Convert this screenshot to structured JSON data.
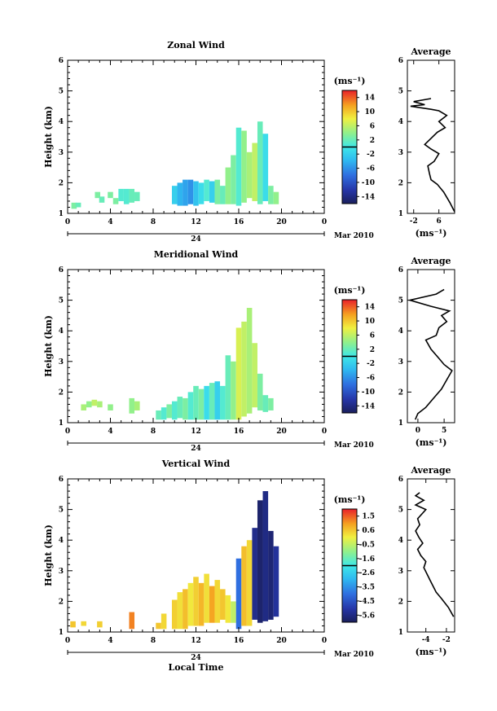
{
  "chart_data": [
    {
      "type": "heatmap",
      "title": "Zonal Wind",
      "xlabel": "",
      "ylabel": "Height (km)",
      "x_ticks": [
        "0",
        "4",
        "8",
        "12",
        "16",
        "20",
        "0"
      ],
      "xlim": [
        0,
        24
      ],
      "y_ticks": [
        "1",
        "2",
        "3",
        "4",
        "5",
        "6"
      ],
      "ylim": [
        1,
        6
      ],
      "day_label": "24",
      "month_label": "Mar 2010",
      "colorbar": {
        "unit": "(ms⁻¹)",
        "ticks": [
          "14",
          "10",
          "6",
          "2",
          "-2",
          "-6",
          "-10",
          "-14"
        ],
        "range": [
          -16,
          16
        ]
      },
      "cells": [
        {
          "t": 0.6,
          "h1": 1.15,
          "h2": 1.35,
          "v": 3
        },
        {
          "t": 1.0,
          "h1": 1.2,
          "h2": 1.35,
          "v": 2
        },
        {
          "t": 2.8,
          "h1": 1.5,
          "h2": 1.7,
          "v": 3
        },
        {
          "t": 3.2,
          "h1": 1.35,
          "h2": 1.55,
          "v": 2
        },
        {
          "t": 4.0,
          "h1": 1.5,
          "h2": 1.7,
          "v": 3
        },
        {
          "t": 4.5,
          "h1": 1.3,
          "h2": 1.5,
          "v": 3
        },
        {
          "t": 5.0,
          "h1": 1.4,
          "h2": 1.8,
          "v": 1
        },
        {
          "t": 5.5,
          "h1": 1.3,
          "h2": 1.8,
          "v": 1
        },
        {
          "t": 6.0,
          "h1": 1.35,
          "h2": 1.8,
          "v": 2
        },
        {
          "t": 6.5,
          "h1": 1.4,
          "h2": 1.7,
          "v": 2
        },
        {
          "t": 10.0,
          "h1": 1.3,
          "h2": 1.9,
          "v": -2
        },
        {
          "t": 10.5,
          "h1": 1.25,
          "h2": 2.0,
          "v": -4
        },
        {
          "t": 11.0,
          "h1": 1.25,
          "h2": 2.1,
          "v": -5
        },
        {
          "t": 11.5,
          "h1": 1.3,
          "h2": 2.1,
          "v": -6
        },
        {
          "t": 12.0,
          "h1": 1.25,
          "h2": 2.05,
          "v": -3
        },
        {
          "t": 12.5,
          "h1": 1.3,
          "h2": 2.0,
          "v": -1
        },
        {
          "t": 13.0,
          "h1": 1.4,
          "h2": 2.1,
          "v": 1
        },
        {
          "t": 13.5,
          "h1": 1.35,
          "h2": 2.05,
          "v": -2
        },
        {
          "t": 14.0,
          "h1": 1.3,
          "h2": 2.1,
          "v": 3
        },
        {
          "t": 14.5,
          "h1": 1.3,
          "h2": 1.9,
          "v": 2
        },
        {
          "t": 15.0,
          "h1": 1.3,
          "h2": 2.5,
          "v": 4
        },
        {
          "t": 15.5,
          "h1": 1.3,
          "h2": 2.9,
          "v": 3
        },
        {
          "t": 16.0,
          "h1": 1.25,
          "h2": 3.8,
          "v": 1
        },
        {
          "t": 16.5,
          "h1": 1.35,
          "h2": 3.7,
          "v": 4
        },
        {
          "t": 17.0,
          "h1": 1.5,
          "h2": 3.0,
          "v": 5
        },
        {
          "t": 17.5,
          "h1": 1.4,
          "h2": 3.3,
          "v": 6
        },
        {
          "t": 18.0,
          "h1": 1.3,
          "h2": 4.0,
          "v": 2
        },
        {
          "t": 18.5,
          "h1": 1.4,
          "h2": 3.6,
          "v": -1
        },
        {
          "t": 19.0,
          "h1": 1.3,
          "h2": 1.9,
          "v": 3
        },
        {
          "t": 19.5,
          "h1": 1.3,
          "h2": 1.7,
          "v": 4
        }
      ],
      "profile": {
        "title": "Average",
        "xlabel": "(ms⁻¹)",
        "x_ticks": [
          "-2",
          "6"
        ],
        "tick_values": [
          -2,
          6
        ],
        "xlim": [
          -4,
          11
        ],
        "ylim": [
          1,
          6
        ],
        "y_ticks": [
          "1",
          "2",
          "3",
          "4",
          "5",
          "6"
        ],
        "points": [
          [
            11,
            1.05
          ],
          [
            9.5,
            1.35
          ],
          [
            7.5,
            1.7
          ],
          [
            5.5,
            1.95
          ],
          [
            3.5,
            2.1
          ],
          [
            3.0,
            2.3
          ],
          [
            2.5,
            2.55
          ],
          [
            4.5,
            2.7
          ],
          [
            6.0,
            2.95
          ],
          [
            3.5,
            3.1
          ],
          [
            1.5,
            3.25
          ],
          [
            3.5,
            3.45
          ],
          [
            5.5,
            3.65
          ],
          [
            8.0,
            3.8
          ],
          [
            6.0,
            4.0
          ],
          [
            8.5,
            4.2
          ],
          [
            6.0,
            4.35
          ],
          [
            3.5,
            4.4
          ],
          [
            -3.0,
            4.5
          ],
          [
            1.5,
            4.55
          ],
          [
            -2.0,
            4.65
          ],
          [
            3.5,
            4.75
          ]
        ]
      }
    },
    {
      "type": "heatmap",
      "title": "Meridional Wind",
      "xlabel": "",
      "ylabel": "Height (km)",
      "x_ticks": [
        "0",
        "4",
        "8",
        "12",
        "16",
        "20",
        "0"
      ],
      "xlim": [
        0,
        24
      ],
      "y_ticks": [
        "1",
        "2",
        "3",
        "4",
        "5",
        "6"
      ],
      "ylim": [
        1,
        6
      ],
      "day_label": "24",
      "month_label": "Mar 2010",
      "colorbar": {
        "unit": "(ms⁻¹)",
        "ticks": [
          "14",
          "10",
          "6",
          "2",
          "-2",
          "-6",
          "-10",
          "-14"
        ],
        "range": [
          -16,
          16
        ]
      },
      "cells": [
        {
          "t": 1.5,
          "h1": 1.4,
          "h2": 1.6,
          "v": 5
        },
        {
          "t": 2.0,
          "h1": 1.5,
          "h2": 1.7,
          "v": 4
        },
        {
          "t": 2.5,
          "h1": 1.55,
          "h2": 1.75,
          "v": 6
        },
        {
          "t": 3.0,
          "h1": 1.5,
          "h2": 1.7,
          "v": 5
        },
        {
          "t": 4.0,
          "h1": 1.4,
          "h2": 1.6,
          "v": 4
        },
        {
          "t": 6.0,
          "h1": 1.3,
          "h2": 1.8,
          "v": 4
        },
        {
          "t": 6.5,
          "h1": 1.4,
          "h2": 1.7,
          "v": 5
        },
        {
          "t": 8.5,
          "h1": 1.1,
          "h2": 1.4,
          "v": 2
        },
        {
          "t": 9.0,
          "h1": 1.1,
          "h2": 1.5,
          "v": 1
        },
        {
          "t": 9.5,
          "h1": 1.15,
          "h2": 1.6,
          "v": 3
        },
        {
          "t": 10.0,
          "h1": 1.1,
          "h2": 1.7,
          "v": 1
        },
        {
          "t": 10.5,
          "h1": 1.15,
          "h2": 1.85,
          "v": 2
        },
        {
          "t": 11.0,
          "h1": 1.1,
          "h2": 1.8,
          "v": 3
        },
        {
          "t": 11.5,
          "h1": 1.1,
          "h2": 2.0,
          "v": 1
        },
        {
          "t": 12.0,
          "h1": 1.1,
          "h2": 2.2,
          "v": 2
        },
        {
          "t": 12.5,
          "h1": 1.1,
          "h2": 2.1,
          "v": 3
        },
        {
          "t": 13.0,
          "h1": 1.1,
          "h2": 2.2,
          "v": -1
        },
        {
          "t": 13.5,
          "h1": 1.1,
          "h2": 2.3,
          "v": 2
        },
        {
          "t": 14.0,
          "h1": 1.1,
          "h2": 2.35,
          "v": -2
        },
        {
          "t": 14.5,
          "h1": 1.1,
          "h2": 2.2,
          "v": 1
        },
        {
          "t": 15.0,
          "h1": 1.1,
          "h2": 3.2,
          "v": 2
        },
        {
          "t": 15.5,
          "h1": 1.1,
          "h2": 3.0,
          "v": 4
        },
        {
          "t": 16.0,
          "h1": 1.1,
          "h2": 4.1,
          "v": 7
        },
        {
          "t": 16.5,
          "h1": 1.2,
          "h2": 4.3,
          "v": 6
        },
        {
          "t": 17.0,
          "h1": 1.3,
          "h2": 4.75,
          "v": 5
        },
        {
          "t": 17.5,
          "h1": 1.5,
          "h2": 3.6,
          "v": 6
        },
        {
          "t": 18.0,
          "h1": 1.4,
          "h2": 2.6,
          "v": 3
        },
        {
          "t": 18.5,
          "h1": 1.35,
          "h2": 1.9,
          "v": 2
        },
        {
          "t": 19.0,
          "h1": 1.4,
          "h2": 1.8,
          "v": 3
        }
      ],
      "profile": {
        "title": "Average",
        "xlabel": "(ms⁻¹)",
        "x_ticks": [
          "0",
          "5"
        ],
        "tick_values": [
          0,
          5
        ],
        "xlim": [
          -2,
          7
        ],
        "ylim": [
          1,
          6
        ],
        "y_ticks": [
          "1",
          "2",
          "3",
          "4",
          "5",
          "6"
        ],
        "points": [
          [
            -0.5,
            1.1
          ],
          [
            0.0,
            1.3
          ],
          [
            1.5,
            1.5
          ],
          [
            3.0,
            1.8
          ],
          [
            4.5,
            2.1
          ],
          [
            5.5,
            2.4
          ],
          [
            6.5,
            2.7
          ],
          [
            5.0,
            2.9
          ],
          [
            4.0,
            3.1
          ],
          [
            2.5,
            3.4
          ],
          [
            1.5,
            3.7
          ],
          [
            3.5,
            3.85
          ],
          [
            4.0,
            4.1
          ],
          [
            5.5,
            4.3
          ],
          [
            4.5,
            4.5
          ],
          [
            6.0,
            4.65
          ],
          [
            2.5,
            4.8
          ],
          [
            -1.5,
            5.0
          ],
          [
            3.5,
            5.2
          ],
          [
            5.0,
            5.35
          ]
        ]
      }
    },
    {
      "type": "heatmap",
      "title": "Vertical Wind",
      "xlabel": "Local Time",
      "ylabel": "Height (km)",
      "x_ticks": [
        "0",
        "4",
        "8",
        "12",
        "16",
        "20",
        "0"
      ],
      "xlim": [
        0,
        24
      ],
      "y_ticks": [
        "1",
        "2",
        "3",
        "4",
        "5",
        "6"
      ],
      "ylim": [
        1,
        6
      ],
      "day_label": "24",
      "month_label": "Mar 2010",
      "colorbar": {
        "unit": "(ms⁻¹)",
        "ticks": [
          "1.5",
          "0.6",
          "-0.5",
          "-1.6",
          "-2.6",
          "-3.5",
          "-4.5",
          "-5.6"
        ],
        "range": [
          -6.0,
          2.0
        ]
      },
      "cells": [
        {
          "t": 0.5,
          "h1": 1.15,
          "h2": 1.35,
          "v": 0.5
        },
        {
          "t": 1.5,
          "h1": 1.2,
          "h2": 1.35,
          "v": 0.3
        },
        {
          "t": 3.0,
          "h1": 1.15,
          "h2": 1.35,
          "v": 0.4
        },
        {
          "t": 6.0,
          "h1": 1.1,
          "h2": 1.65,
          "v": 1.2
        },
        {
          "t": 8.5,
          "h1": 1.1,
          "h2": 1.3,
          "v": 0.5
        },
        {
          "t": 9.0,
          "h1": 1.1,
          "h2": 1.6,
          "v": 0.3
        },
        {
          "t": 10.0,
          "h1": 1.1,
          "h2": 2.05,
          "v": 0.4
        },
        {
          "t": 10.5,
          "h1": 1.1,
          "h2": 2.3,
          "v": 0.2
        },
        {
          "t": 11.0,
          "h1": 1.1,
          "h2": 2.4,
          "v": 0.6
        },
        {
          "t": 11.5,
          "h1": 1.2,
          "h2": 2.6,
          "v": 0.1
        },
        {
          "t": 12.0,
          "h1": 1.2,
          "h2": 2.8,
          "v": 0.4
        },
        {
          "t": 12.5,
          "h1": 1.2,
          "h2": 2.6,
          "v": 0.7
        },
        {
          "t": 13.0,
          "h1": 1.3,
          "h2": 2.9,
          "v": 0.2
        },
        {
          "t": 13.5,
          "h1": 1.3,
          "h2": 2.5,
          "v": 0.9
        },
        {
          "t": 14.0,
          "h1": 1.3,
          "h2": 2.7,
          "v": 0.3
        },
        {
          "t": 14.5,
          "h1": 1.4,
          "h2": 2.4,
          "v": 0.5
        },
        {
          "t": 15.0,
          "h1": 1.3,
          "h2": 2.2,
          "v": 0.1
        },
        {
          "t": 15.5,
          "h1": 1.3,
          "h2": 2.0,
          "v": -0.5
        },
        {
          "t": 16.0,
          "h1": 1.1,
          "h2": 3.4,
          "v": -4.0
        },
        {
          "t": 16.5,
          "h1": 1.2,
          "h2": 3.8,
          "v": 0.6
        },
        {
          "t": 17.0,
          "h1": 1.2,
          "h2": 4.0,
          "v": 0.3
        },
        {
          "t": 17.5,
          "h1": 1.4,
          "h2": 4.4,
          "v": -5.4
        },
        {
          "t": 18.0,
          "h1": 1.3,
          "h2": 5.3,
          "v": -5.8
        },
        {
          "t": 18.5,
          "h1": 1.35,
          "h2": 5.6,
          "v": -5.5
        },
        {
          "t": 19.0,
          "h1": 1.4,
          "h2": 4.3,
          "v": -5.7
        },
        {
          "t": 19.5,
          "h1": 1.5,
          "h2": 3.8,
          "v": -5.2
        }
      ],
      "profile": {
        "title": "Average",
        "xlabel": "(ms⁻¹)",
        "x_ticks": [
          "-4",
          "-2"
        ],
        "tick_values": [
          -4,
          -2
        ],
        "xlim": [
          -5.8,
          -1.2
        ],
        "ylim": [
          1,
          6
        ],
        "y_ticks": [
          "1",
          "2",
          "3",
          "4",
          "5",
          "6"
        ],
        "points": [
          [
            -1.3,
            1.5
          ],
          [
            -1.8,
            1.8
          ],
          [
            -2.5,
            2.1
          ],
          [
            -3.0,
            2.3
          ],
          [
            -3.3,
            2.5
          ],
          [
            -3.6,
            2.7
          ],
          [
            -3.9,
            2.9
          ],
          [
            -4.2,
            3.1
          ],
          [
            -4.0,
            3.3
          ],
          [
            -4.5,
            3.5
          ],
          [
            -4.8,
            3.7
          ],
          [
            -4.3,
            3.9
          ],
          [
            -4.7,
            4.1
          ],
          [
            -5.0,
            4.3
          ],
          [
            -4.6,
            4.5
          ],
          [
            -4.8,
            4.7
          ],
          [
            -4.0,
            5.0
          ],
          [
            -5.0,
            5.15
          ],
          [
            -4.2,
            5.3
          ],
          [
            -5.0,
            5.45
          ],
          [
            -4.6,
            5.55
          ]
        ]
      }
    }
  ]
}
